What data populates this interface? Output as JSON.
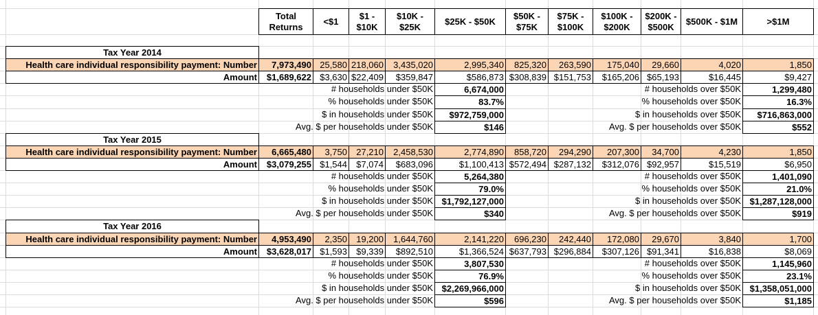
{
  "header": {
    "columns": [
      "Total Returns",
      "<$1",
      "$1 - $10K",
      "$10K - $25K",
      "$25K - $50K",
      "$50K - $75K",
      "$75K - $100K",
      "$100K - $200K",
      "$200K - $500K",
      "$500K - $1M",
      ">$1M"
    ]
  },
  "years": [
    {
      "title": "Tax Year 2014",
      "number_label": "Health care individual responsibility payment: Number",
      "number_values": [
        "7,973,490",
        "25,580",
        "218,060",
        "3,435,020",
        "2,995,340",
        "825,320",
        "263,590",
        "175,040",
        "29,660",
        "4,020",
        "1,850"
      ],
      "amount_label": "Amount",
      "amount_values": [
        "$1,689,622",
        "$3,630",
        "$22,409",
        "$359,847",
        "$586,873",
        "$308,839",
        "$151,753",
        "$165,206",
        "$65,193",
        "$16,445",
        "$9,427"
      ],
      "summary": [
        [
          "# households under $50K",
          "6,674,000",
          "# households over $50K",
          "1,299,480"
        ],
        [
          "% households under $50K",
          "83.7%",
          "% households over $50K",
          "16.3%"
        ],
        [
          "$ in households under $50K",
          "$972,759,000",
          "$ in households over $50K",
          "$716,863,000"
        ],
        [
          "Avg. $ per households under $50K",
          "$146",
          "Avg. $ per households over $50K",
          "$552"
        ]
      ]
    },
    {
      "title": "Tax Year 2015",
      "number_label": "Health care individual responsibility payment: Number",
      "number_values": [
        "6,665,480",
        "3,750",
        "27,210",
        "2,458,530",
        "2,774,890",
        "858,720",
        "294,290",
        "207,300",
        "34,700",
        "4,230",
        "1,850"
      ],
      "amount_label": "Amount",
      "amount_values": [
        "$3,079,255",
        "$1,544",
        "$7,074",
        "$683,096",
        "$1,100,413",
        "$572,494",
        "$287,132",
        "$312,076",
        "$92,957",
        "$15,519",
        "$6,950"
      ],
      "summary": [
        [
          "# households under $50K",
          "5,264,380",
          "# households over $50K",
          "1,401,090"
        ],
        [
          "% households under $50K",
          "79.0%",
          "% households over $50K",
          "21.0%"
        ],
        [
          "$ in households under $50K",
          "$1,792,127,000",
          "$ in households over $50K",
          "$1,287,128,000"
        ],
        [
          "Avg. $ per households under $50K",
          "$340",
          "Avg. $ per households over $50K",
          "$919"
        ]
      ]
    },
    {
      "title": "Tax Year 2016",
      "number_label": "Health care individual responsibility payment: Number",
      "number_values": [
        "4,953,490",
        "2,350",
        "19,200",
        "1,644,760",
        "2,141,220",
        "696,230",
        "242,440",
        "172,080",
        "29,670",
        "3,840",
        "1,700"
      ],
      "amount_label": "Amount",
      "amount_values": [
        "$3,628,017",
        "$1,593",
        "$9,339",
        "$892,510",
        "$1,366,524",
        "$637,793",
        "$296,884",
        "$307,126",
        "$91,341",
        "$16,838",
        "$8,069"
      ],
      "summary": [
        [
          "# households under $50K",
          "3,807,530",
          "# households over $50K",
          "1,145,960"
        ],
        [
          "% households under $50K",
          "76.9%",
          "% households over $50K",
          "23.1%"
        ],
        [
          "$ in households under $50K",
          "$2,269,966,000",
          "$ in households over $50K",
          "$1,358,051,000"
        ],
        [
          "Avg. $ per households under $50K",
          "$596",
          "Avg. $ per households over $50K",
          "$1,185"
        ]
      ]
    }
  ]
}
